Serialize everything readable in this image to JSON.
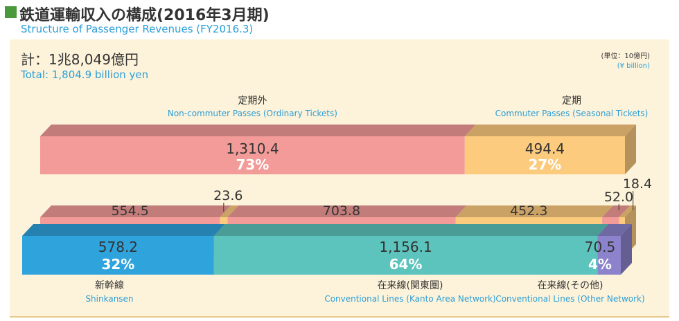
{
  "header": {
    "title": "鉄道運輸収入の構成(2016年3月期)",
    "subtitle": "Structure of Passenger Revenues (FY2016.3)"
  },
  "chart_data": {
    "type": "bar",
    "title": "鉄道運輸収入の構成(2016年3月期)",
    "subtitle": "Structure of Passenger Revenues (FY2016.3)",
    "unit_jp": "(単位：10億円)",
    "unit_en": "(¥ billion)",
    "total_jp": "計：1兆8,049億円",
    "total_en": "Total: 1,804.9 billion yen",
    "top_bar": {
      "segments": [
        {
          "label_jp": "定期外",
          "label_en": "Non-commuter Passes (Ordinary Tickets)",
          "value": 1310.4,
          "display": "1,310.4",
          "percent": "73%",
          "color": "#f29b98"
        },
        {
          "label_jp": "定期",
          "label_en": "Commuter Passes (Seasonal Tickets)",
          "value": 494.4,
          "display": "494.4",
          "percent": "27%",
          "color": "#fccb7e"
        }
      ]
    },
    "middle_bar": {
      "segments": [
        {
          "value": 554.5,
          "display": "554.5",
          "color": "#f29b98"
        },
        {
          "value": 23.6,
          "display": "23.6",
          "color": "#fccb7e"
        },
        {
          "value": 703.8,
          "display": "703.8",
          "color": "#f29b98"
        },
        {
          "value": 452.3,
          "display": "452.3",
          "color": "#fccb7e"
        },
        {
          "value": 52.0,
          "display": "52.0",
          "color": "#f29b98"
        },
        {
          "value": 18.4,
          "display": "18.4",
          "color": "#fccb7e"
        }
      ]
    },
    "bottom_bar": {
      "segments": [
        {
          "label_jp": "新幹線",
          "label_en": "Shinkansen",
          "value": 578.2,
          "display": "578.2",
          "percent": "32%",
          "color": "#2ea3dc"
        },
        {
          "label_jp": "在来線(関東圏)",
          "label_en": "Conventional Lines (Kanto Area Network)",
          "value": 1156.1,
          "display": "1,156.1",
          "percent": "64%",
          "color": "#5cc4bc"
        },
        {
          "label_jp": "在来線(その他)",
          "label_en": "Conventional Lines (Other Network)",
          "value": 70.5,
          "display": "70.5",
          "percent": "4%",
          "color": "#8b83cc"
        }
      ]
    }
  }
}
